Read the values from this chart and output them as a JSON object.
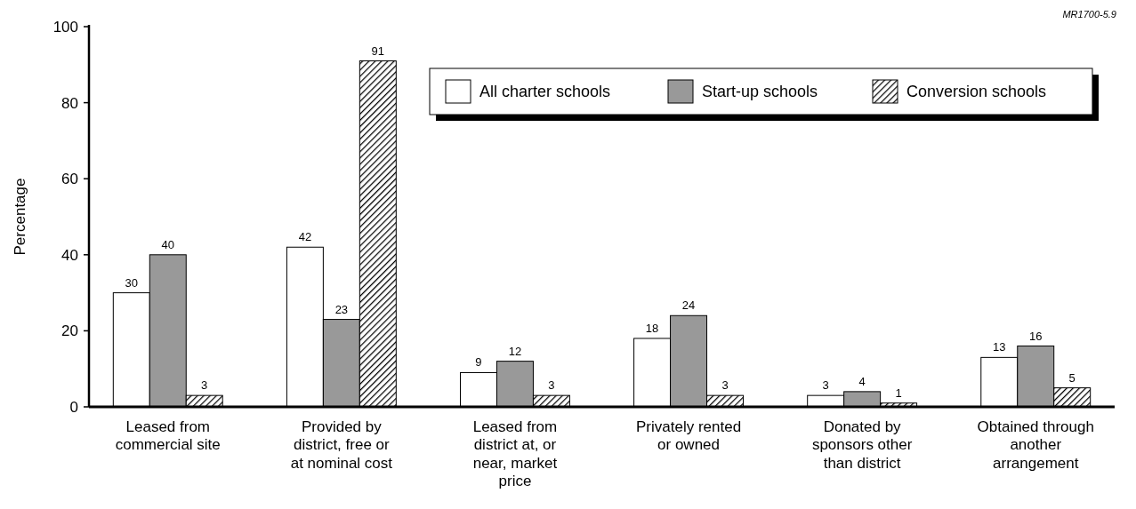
{
  "chart_data": {
    "type": "bar",
    "ylabel": "Percentage",
    "categories": [
      "Leased from commercial site",
      "Provided by district, free or at nominal cost",
      "Leased from district at, or near, market price",
      "Privately rented or owned",
      "Donated by sponsors other than district",
      "Obtained through another arrangement"
    ],
    "series": [
      {
        "name": "All charter schools",
        "color": "#ffffff",
        "values": [
          30,
          42,
          9,
          18,
          3,
          13
        ]
      },
      {
        "name": "Start-up schools",
        "color": "#999999",
        "values": [
          40,
          23,
          12,
          24,
          4,
          16
        ]
      },
      {
        "name": "Conversion schools",
        "color": "#000000",
        "values": [
          3,
          91,
          3,
          3,
          1,
          5
        ]
      }
    ],
    "ylim": [
      0,
      100
    ],
    "yticks": [
      0,
      20,
      40,
      60,
      80,
      100
    ],
    "data_labels": true,
    "legend": "top right",
    "grid": false,
    "annotations": [
      "MR1700-5.9"
    ]
  }
}
